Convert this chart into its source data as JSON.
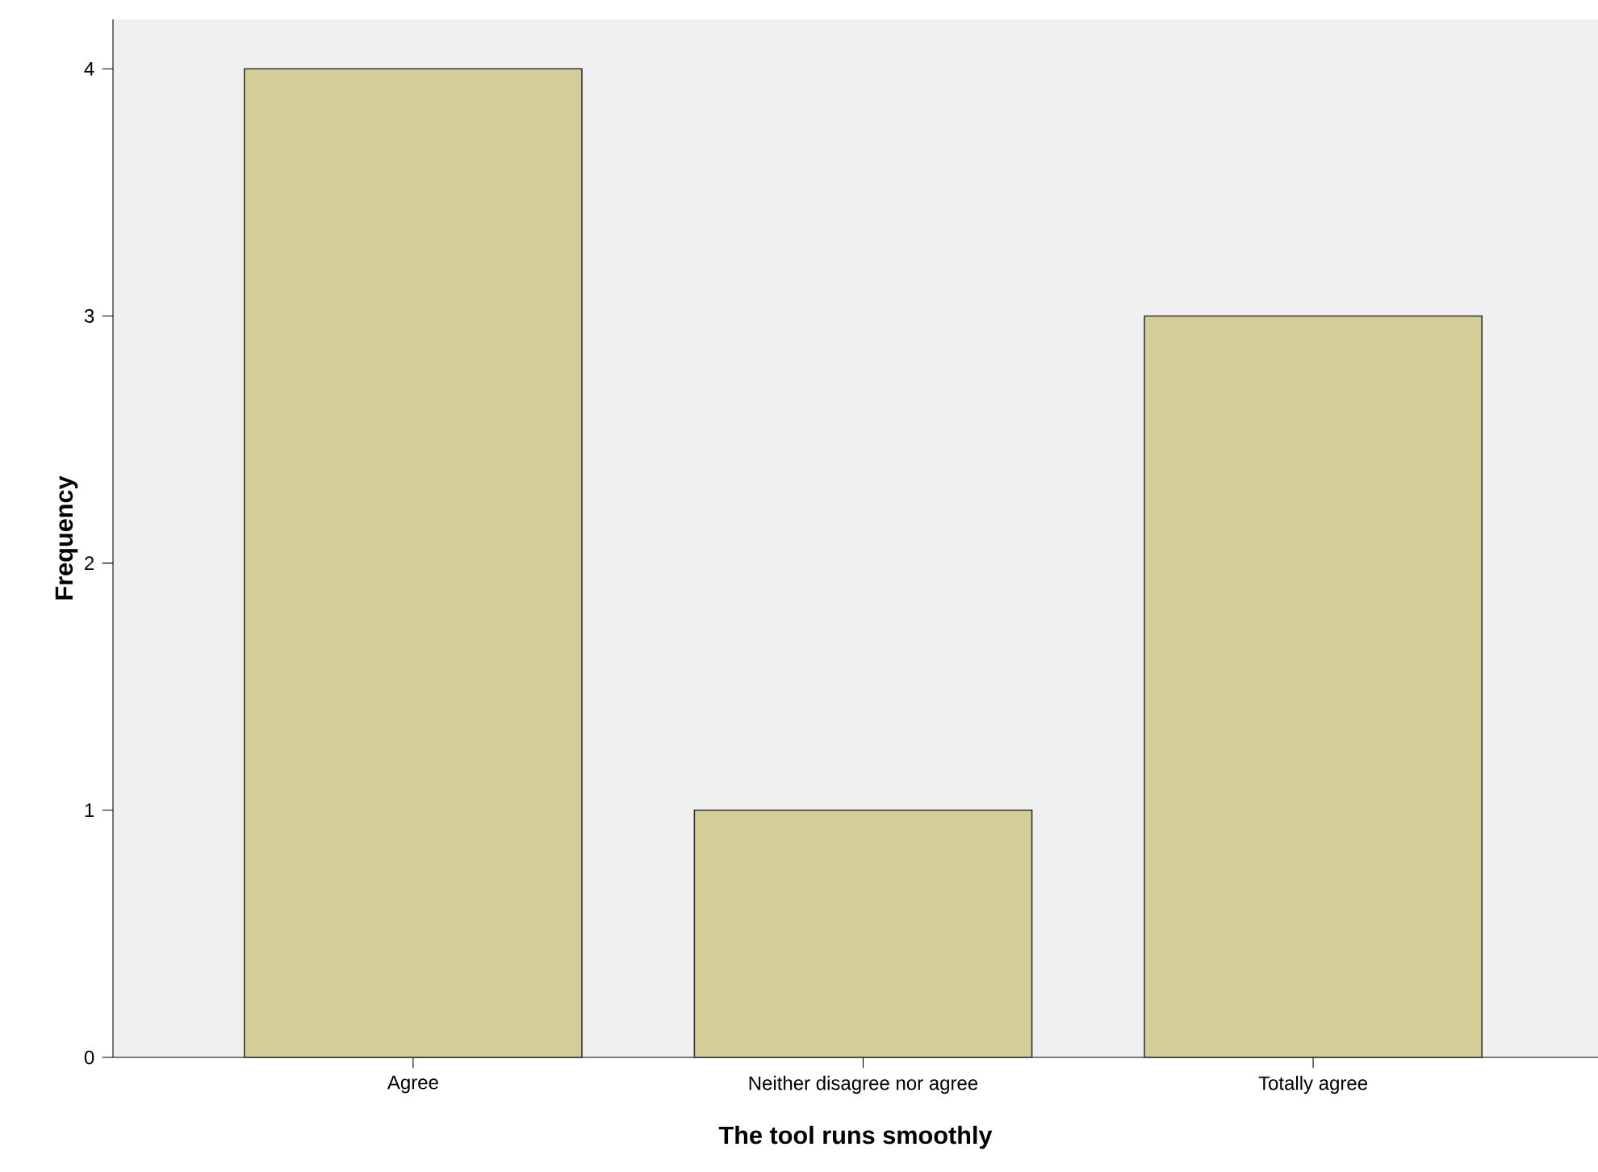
{
  "chart_data": {
    "type": "bar",
    "xlabel": "The tool runs smoothly",
    "ylabel": "Frequency",
    "categories": [
      "Agree",
      "Neither disagree nor agree",
      "Totally agree"
    ],
    "values": [
      4,
      1,
      3
    ],
    "color": "#d3ce97",
    "ylim": [
      0,
      4.2
    ],
    "yticks": [
      0,
      1,
      2,
      3,
      4
    ]
  }
}
